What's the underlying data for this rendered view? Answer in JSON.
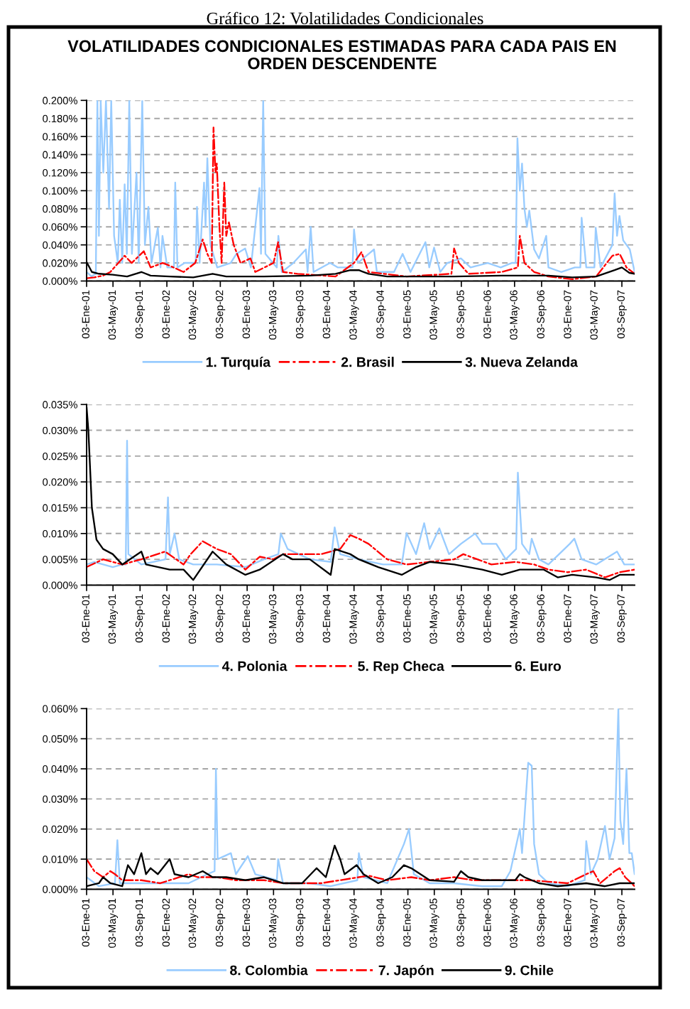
{
  "chart_data": [
    {
      "type": "line",
      "title": "Gráfico 12: Volatilidades Condicionales",
      "subtitle": "VOLATILIDADES CONDICIONALES ESTIMADAS PARA CADA PAIS EN ORDEN DESCENDENTE",
      "xlim": [
        "2001-01-03",
        "2007-10-31"
      ],
      "xticks": [
        {
          "value": "2001-01-03",
          "label": "03-Ene-01"
        },
        {
          "value": "2001-05-03",
          "label": "03-May-01"
        },
        {
          "value": "2001-09-03",
          "label": "03-Sep-01"
        },
        {
          "value": "2002-01-03",
          "label": "03-Ene-02"
        },
        {
          "value": "2002-05-03",
          "label": "03-May-02"
        },
        {
          "value": "2002-09-03",
          "label": "03-Sep-02"
        },
        {
          "value": "2003-01-03",
          "label": "03-Ene-03"
        },
        {
          "value": "2003-05-03",
          "label": "03-May-03"
        },
        {
          "value": "2003-09-03",
          "label": "03-Sep-03"
        },
        {
          "value": "2004-01-03",
          "label": "03-Ene-04"
        },
        {
          "value": "2004-05-03",
          "label": "03-May-04"
        },
        {
          "value": "2004-09-03",
          "label": "03-Sep-04"
        },
        {
          "value": "2005-01-03",
          "label": "03-Ene-05"
        },
        {
          "value": "2005-05-03",
          "label": "03-May-05"
        },
        {
          "value": "2005-09-03",
          "label": "03-Sep-05"
        },
        {
          "value": "2006-01-03",
          "label": "03-Ene-06"
        },
        {
          "value": "2006-05-03",
          "label": "03-May-06"
        },
        {
          "value": "2006-09-03",
          "label": "03-Sep-06"
        },
        {
          "value": "2007-01-03",
          "label": "03-Ene-07"
        },
        {
          "value": "2007-05-03",
          "label": "03-May-07"
        },
        {
          "value": "2007-09-03",
          "label": "03-Sep-07"
        }
      ],
      "ylim": [
        0,
        0.2
      ],
      "yticks": [
        {
          "value": 0,
          "label": "0.000%"
        },
        {
          "value": 0.02,
          "label": "0.020%"
        },
        {
          "value": 0.04,
          "label": "0.040%"
        },
        {
          "value": 0.06,
          "label": "0.060%"
        },
        {
          "value": 0.08,
          "label": "0.080%"
        },
        {
          "value": 0.1,
          "label": "0.100%"
        },
        {
          "value": 0.12,
          "label": "0.120%"
        },
        {
          "value": 0.14,
          "label": "0.140%"
        },
        {
          "value": 0.16,
          "label": "0.160%"
        },
        {
          "value": 0.18,
          "label": "0.180%"
        },
        {
          "value": 0.2,
          "label": "0.200%"
        }
      ],
      "grid": "y",
      "legend": "bottom",
      "series": [
        {
          "name": "1. Turquía",
          "color": "#99ccff",
          "line_style": "solid",
          "x": [
            "2001-01-03",
            "2001-01-25",
            "2001-02-14",
            "2001-02-21",
            "2001-02-28",
            "2001-03-08",
            "2001-03-20",
            "2001-04-01",
            "2001-04-15",
            "2001-04-25",
            "2001-05-08",
            "2001-05-25",
            "2001-06-03",
            "2001-06-14",
            "2001-06-25",
            "2001-07-05",
            "2001-07-16",
            "2001-07-28",
            "2001-08-18",
            "2001-08-28",
            "2001-09-13",
            "2001-09-25",
            "2001-10-11",
            "2001-10-25",
            "2001-11-23",
            "2001-12-05",
            "2001-12-14",
            "2002-01-05",
            "2002-02-04",
            "2002-02-10",
            "2002-02-20",
            "2002-03-25",
            "2002-05-14",
            "2002-05-20",
            "2002-06-01",
            "2002-06-21",
            "2002-06-28",
            "2002-07-06",
            "2002-07-20",
            "2002-08-20",
            "2002-10-20",
            "2002-11-15",
            "2002-12-25",
            "2003-01-20",
            "2003-02-28",
            "2003-03-07",
            "2003-03-17",
            "2003-03-27",
            "2003-05-18",
            "2003-05-25",
            "2003-06-10",
            "2003-08-01",
            "2003-09-27",
            "2003-10-05",
            "2003-10-19",
            "2003-11-01",
            "2004-01-15",
            "2004-02-20",
            "2004-04-26",
            "2004-05-03",
            "2004-05-20",
            "2004-08-02",
            "2004-08-15",
            "2004-11-01",
            "2004-12-10",
            "2005-01-15",
            "2005-03-24",
            "2005-04-10",
            "2005-05-02",
            "2005-05-30",
            "2005-07-01",
            "2005-09-01",
            "2005-10-15",
            "2006-01-01",
            "2006-03-01",
            "2006-04-20",
            "2006-05-08",
            "2006-05-16",
            "2006-05-27",
            "2006-06-06",
            "2006-06-17",
            "2006-06-28",
            "2006-07-09",
            "2006-07-31",
            "2006-08-22",
            "2006-09-24",
            "2006-10-04",
            "2006-12-01",
            "2007-02-01",
            "2007-02-26",
            "2007-03-04",
            "2007-03-25",
            "2007-05-01",
            "2007-05-07",
            "2007-05-29",
            "2007-07-22",
            "2007-08-01",
            "2007-08-12",
            "2007-08-23",
            "2007-09-09",
            "2007-09-24",
            "2007-10-09",
            "2007-10-31"
          ],
          "values": [
            0.01,
            0.005,
            0.008,
            0.2,
            0.05,
            0.2,
            0.12,
            0.2,
            0.08,
            0.2,
            0.05,
            0.02,
            0.09,
            0.02,
            0.107,
            0.03,
            0.2,
            0.03,
            0.12,
            0.02,
            0.2,
            0.04,
            0.082,
            0.02,
            0.059,
            0.015,
            0.05,
            0.015,
            0.015,
            0.109,
            0.015,
            0.02,
            0.02,
            0.082,
            0.02,
            0.109,
            0.06,
            0.136,
            0.04,
            0.015,
            0.02,
            0.03,
            0.036,
            0.015,
            0.103,
            0.03,
            0.2,
            0.03,
            0.015,
            0.05,
            0.01,
            0.02,
            0.035,
            0.01,
            0.06,
            0.01,
            0.02,
            0.015,
            0.015,
            0.057,
            0.02,
            0.035,
            0.01,
            0.01,
            0.03,
            0.01,
            0.043,
            0.015,
            0.037,
            0.01,
            0.02,
            0.025,
            0.015,
            0.02,
            0.015,
            0.02,
            0.02,
            0.158,
            0.1,
            0.13,
            0.08,
            0.06,
            0.078,
            0.035,
            0.025,
            0.05,
            0.015,
            0.01,
            0.015,
            0.015,
            0.07,
            0.015,
            0.015,
            0.059,
            0.015,
            0.04,
            0.097,
            0.05,
            0.072,
            0.045,
            0.04,
            0.035,
            0.01
          ]
        },
        {
          "name": "2. Brasil",
          "color": "#ff0000",
          "line_style": "dashed",
          "x": [
            "2001-01-03",
            "2001-02-07",
            "2001-03-19",
            "2001-04-21",
            "2001-06-25",
            "2001-07-27",
            "2001-09-20",
            "2001-10-21",
            "2001-12-15",
            "2002-01-06",
            "2002-03-20",
            "2002-05-12",
            "2002-06-15",
            "2002-07-06",
            "2002-07-26",
            "2002-08-03",
            "2002-08-12",
            "2002-08-18",
            "2002-08-30",
            "2002-09-09",
            "2002-09-21",
            "2002-09-30",
            "2002-10-12",
            "2002-11-03",
            "2002-12-04",
            "2003-01-18",
            "2003-02-09",
            "2003-05-03",
            "2003-05-24",
            "2003-06-15",
            "2003-08-20",
            "2004-02-09",
            "2004-05-03",
            "2004-06-06",
            "2004-07-08",
            "2004-12-28",
            "2005-07-20",
            "2005-08-01",
            "2005-08-23",
            "2005-10-05",
            "2006-03-06",
            "2006-05-18",
            "2006-05-27",
            "2006-06-17",
            "2006-07-31",
            "2006-10-04",
            "2007-01-20",
            "2007-05-09",
            "2007-07-22",
            "2007-08-24",
            "2007-09-24",
            "2007-10-31"
          ],
          "values": [
            0.003,
            0.004,
            0.006,
            0.01,
            0.028,
            0.02,
            0.033,
            0.015,
            0.02,
            0.018,
            0.01,
            0.02,
            0.046,
            0.03,
            0.02,
            0.17,
            0.12,
            0.13,
            0.06,
            0.02,
            0.109,
            0.05,
            0.065,
            0.04,
            0.02,
            0.025,
            0.01,
            0.02,
            0.043,
            0.01,
            0.008,
            0.005,
            0.02,
            0.032,
            0.01,
            0.005,
            0.008,
            0.036,
            0.02,
            0.008,
            0.01,
            0.015,
            0.05,
            0.02,
            0.01,
            0.005,
            0.002,
            0.005,
            0.028,
            0.03,
            0.015,
            0.008
          ]
        },
        {
          "name": "3. Nueva Zelanda",
          "color": "#000000",
          "line_style": "solid",
          "x": [
            "2001-01-03",
            "2001-01-27",
            "2001-02-28",
            "2001-05-02",
            "2001-07-06",
            "2001-09-09",
            "2001-10-21",
            "2002-01-16",
            "2002-05-03",
            "2002-07-30",
            "2002-09-30",
            "2003-03-21",
            "2003-10-15",
            "2004-02-09",
            "2004-04-16",
            "2004-05-25",
            "2004-07-08",
            "2004-10-01",
            "2005-08-01",
            "2006-03-06",
            "2006-06-17",
            "2006-10-04",
            "2007-01-20",
            "2007-05-09",
            "2007-08-01",
            "2007-09-03",
            "2007-10-07",
            "2007-10-31"
          ],
          "values": [
            0.021,
            0.01,
            0.008,
            0.007,
            0.005,
            0.01,
            0.006,
            0.005,
            0.004,
            0.008,
            0.005,
            0.005,
            0.006,
            0.008,
            0.012,
            0.012,
            0.008,
            0.005,
            0.005,
            0.006,
            0.006,
            0.006,
            0.004,
            0.005,
            0.012,
            0.015,
            0.009,
            0.008
          ]
        }
      ]
    },
    {
      "type": "line",
      "xlim": [
        "2001-01-03",
        "2007-10-31"
      ],
      "xticks": [
        {
          "value": "2001-01-03",
          "label": "03-Ene-01"
        },
        {
          "value": "2001-05-03",
          "label": "03-May-01"
        },
        {
          "value": "2001-09-03",
          "label": "03-Sep-01"
        },
        {
          "value": "2002-01-03",
          "label": "03-Ene-02"
        },
        {
          "value": "2002-05-03",
          "label": "03-May-02"
        },
        {
          "value": "2002-09-03",
          "label": "03-Sep-02"
        },
        {
          "value": "2003-01-03",
          "label": "03-Ene-03"
        },
        {
          "value": "2003-05-03",
          "label": "03-May-03"
        },
        {
          "value": "2003-09-03",
          "label": "03-Sep-03"
        },
        {
          "value": "2004-01-03",
          "label": "03-Ene-04"
        },
        {
          "value": "2004-05-03",
          "label": "03-May-04"
        },
        {
          "value": "2004-09-03",
          "label": "03-Sep-04"
        },
        {
          "value": "2005-01-03",
          "label": "03-Ene-05"
        },
        {
          "value": "2005-05-03",
          "label": "03-May-05"
        },
        {
          "value": "2005-09-03",
          "label": "03-Sep-05"
        },
        {
          "value": "2006-01-03",
          "label": "03-Ene-06"
        },
        {
          "value": "2006-05-03",
          "label": "03-May-06"
        },
        {
          "value": "2006-09-03",
          "label": "03-Sep-06"
        },
        {
          "value": "2007-01-03",
          "label": "03-Ene-07"
        },
        {
          "value": "2007-05-03",
          "label": "03-May-07"
        },
        {
          "value": "2007-09-03",
          "label": "03-Sep-07"
        }
      ],
      "ylim": [
        0,
        0.035
      ],
      "yticks": [
        {
          "value": 0,
          "label": "0.000%"
        },
        {
          "value": 0.005,
          "label": "0.005%"
        },
        {
          "value": 0.01,
          "label": "0.010%"
        },
        {
          "value": 0.015,
          "label": "0.015%"
        },
        {
          "value": 0.02,
          "label": "0.020%"
        },
        {
          "value": 0.025,
          "label": "0.025%"
        },
        {
          "value": 0.03,
          "label": "0.030%"
        },
        {
          "value": 0.035,
          "label": "0.035%"
        }
      ],
      "grid": "y",
      "legend": "bottom",
      "series": [
        {
          "name": "4. Polonia",
          "color": "#99ccff",
          "line_style": "solid",
          "x": [
            "2001-01-03",
            "2001-02-07",
            "2001-05-02",
            "2001-06-14",
            "2001-06-30",
            "2001-07-06",
            "2001-07-12",
            "2001-09-09",
            "2001-12-28",
            "2002-01-08",
            "2002-01-16",
            "2002-02-07",
            "2002-02-28",
            "2002-05-03",
            "2002-08-18",
            "2002-12-26",
            "2003-03-21",
            "2003-05-25",
            "2003-06-05",
            "2003-07-06",
            "2003-10-15",
            "2004-01-18",
            "2004-02-05",
            "2004-03-01",
            "2004-05-25",
            "2004-09-12",
            "2004-12-06",
            "2004-12-28",
            "2005-02-09",
            "2005-03-18",
            "2005-04-12",
            "2005-05-26",
            "2005-07-09",
            "2005-09-01",
            "2005-11-05",
            "2005-12-07",
            "2006-02-09",
            "2006-03-24",
            "2006-05-10",
            "2006-05-18",
            "2006-06-06",
            "2006-07-09",
            "2006-07-20",
            "2006-08-22",
            "2006-10-04",
            "2007-01-09",
            "2007-01-30",
            "2007-03-04",
            "2007-05-09",
            "2007-08-12",
            "2007-09-14",
            "2007-10-31"
          ],
          "values": [
            0.004,
            0.0045,
            0.0035,
            0.004,
            0.004,
            0.028,
            0.006,
            0.004,
            0.005,
            0.017,
            0.006,
            0.01,
            0.005,
            0.004,
            0.004,
            0.0035,
            0.005,
            0.006,
            0.01,
            0.007,
            0.005,
            0.0045,
            0.0112,
            0.006,
            0.005,
            0.004,
            0.004,
            0.0101,
            0.006,
            0.012,
            0.007,
            0.011,
            0.006,
            0.008,
            0.01,
            0.008,
            0.008,
            0.005,
            0.007,
            0.0218,
            0.008,
            0.006,
            0.009,
            0.005,
            0.004,
            0.008,
            0.009,
            0.005,
            0.004,
            0.0065,
            0.004,
            0.004
          ]
        },
        {
          "name": "5. Rep Checa",
          "color": "#ff0000",
          "line_style": "dashed",
          "x": [
            "2001-01-03",
            "2001-03-19",
            "2001-06-14",
            "2001-09-09",
            "2001-12-26",
            "2002-03-20",
            "2002-04-21",
            "2002-06-15",
            "2002-08-18",
            "2002-10-21",
            "2002-12-26",
            "2003-03-01",
            "2003-05-03",
            "2003-06-15",
            "2003-09-10",
            "2003-12-05",
            "2004-03-01",
            "2004-04-16",
            "2004-05-25",
            "2004-07-08",
            "2004-10-01",
            "2004-12-28",
            "2005-04-12",
            "2005-08-01",
            "2005-09-12",
            "2006-01-18",
            "2006-05-06",
            "2006-07-31",
            "2006-10-04",
            "2006-12-30",
            "2007-03-25",
            "2007-06-18",
            "2007-08-24",
            "2007-10-31"
          ],
          "values": [
            0.0035,
            0.005,
            0.004,
            0.005,
            0.0065,
            0.004,
            0.006,
            0.0085,
            0.007,
            0.006,
            0.003,
            0.0055,
            0.005,
            0.006,
            0.006,
            0.006,
            0.007,
            0.0097,
            0.009,
            0.008,
            0.005,
            0.004,
            0.0045,
            0.005,
            0.006,
            0.004,
            0.0045,
            0.004,
            0.003,
            0.0025,
            0.003,
            0.0015,
            0.0025,
            0.003
          ]
        },
        {
          "name": "6. Euro",
          "color": "#000000",
          "line_style": "solid",
          "x": [
            "2001-01-03",
            "2001-01-11",
            "2001-01-27",
            "2001-02-17",
            "2001-03-19",
            "2001-05-02",
            "2001-06-14",
            "2001-09-09",
            "2001-09-30",
            "2002-01-16",
            "2002-03-20",
            "2002-05-03",
            "2002-07-30",
            "2002-09-30",
            "2002-12-26",
            "2003-03-01",
            "2003-06-15",
            "2003-07-28",
            "2003-10-15",
            "2004-01-18",
            "2004-02-05",
            "2004-04-16",
            "2004-05-25",
            "2004-08-21",
            "2004-12-06",
            "2005-02-09",
            "2005-04-12",
            "2005-08-01",
            "2005-12-07",
            "2006-03-06",
            "2006-05-27",
            "2006-09-13",
            "2006-11-15",
            "2007-01-20",
            "2007-05-09",
            "2007-07-09",
            "2007-08-24",
            "2007-10-31"
          ],
          "values": [
            0.0345,
            0.03,
            0.015,
            0.0088,
            0.007,
            0.006,
            0.004,
            0.0065,
            0.004,
            0.003,
            0.003,
            0.001,
            0.0065,
            0.004,
            0.002,
            0.003,
            0.006,
            0.005,
            0.005,
            0.002,
            0.007,
            0.006,
            0.005,
            0.0035,
            0.002,
            0.0035,
            0.0045,
            0.004,
            0.003,
            0.002,
            0.003,
            0.003,
            0.0015,
            0.002,
            0.0015,
            0.001,
            0.002,
            0.002
          ]
        }
      ]
    },
    {
      "type": "line",
      "xlim": [
        "2001-01-03",
        "2007-10-31"
      ],
      "xticks": [
        {
          "value": "2001-01-03",
          "label": "03-Ene-01"
        },
        {
          "value": "2001-05-03",
          "label": "03-May-01"
        },
        {
          "value": "2001-09-03",
          "label": "03-Sep-01"
        },
        {
          "value": "2002-01-03",
          "label": "03-Ene-02"
        },
        {
          "value": "2002-05-03",
          "label": "03-May-02"
        },
        {
          "value": "2002-09-03",
          "label": "03-Sep-02"
        },
        {
          "value": "2003-01-03",
          "label": "03-Ene-03"
        },
        {
          "value": "2003-05-03",
          "label": "03-May-03"
        },
        {
          "value": "2003-09-03",
          "label": "03-Sep-03"
        },
        {
          "value": "2004-01-03",
          "label": "03-Ene-04"
        },
        {
          "value": "2004-05-03",
          "label": "03-May-04"
        },
        {
          "value": "2004-09-03",
          "label": "03-Sep-04"
        },
        {
          "value": "2005-01-03",
          "label": "03-Ene-05"
        },
        {
          "value": "2005-05-03",
          "label": "03-May-05"
        },
        {
          "value": "2005-09-03",
          "label": "03-Sep-05"
        },
        {
          "value": "2006-01-03",
          "label": "03-Ene-06"
        },
        {
          "value": "2006-05-03",
          "label": "03-May-06"
        },
        {
          "value": "2006-09-03",
          "label": "03-Sep-06"
        },
        {
          "value": "2007-01-03",
          "label": "03-Ene-07"
        },
        {
          "value": "2007-05-03",
          "label": "03-May-07"
        },
        {
          "value": "2007-09-03",
          "label": "03-Sep-07"
        }
      ],
      "ylim": [
        0,
        0.06
      ],
      "yticks": [
        {
          "value": 0,
          "label": "0.000%"
        },
        {
          "value": 0.01,
          "label": "0.010%"
        },
        {
          "value": 0.02,
          "label": "0.020%"
        },
        {
          "value": 0.03,
          "label": "0.030%"
        },
        {
          "value": 0.04,
          "label": "0.040%"
        },
        {
          "value": 0.05,
          "label": "0.050%"
        },
        {
          "value": 0.06,
          "label": "0.060%"
        }
      ],
      "grid": "y",
      "legend": "bottom",
      "series": [
        {
          "name": "8. Colombia",
          "color": "#99ccff",
          "line_style": "solid",
          "x": [
            "2001-01-03",
            "2001-02-28",
            "2001-05-12",
            "2001-05-23",
            "2001-06-03",
            "2001-09-30",
            "2002-01-16",
            "2002-04-12",
            "2002-07-06",
            "2002-08-08",
            "2002-08-14",
            "2002-08-22",
            "2002-10-21",
            "2002-11-13",
            "2003-01-06",
            "2003-02-09",
            "2003-05-18",
            "2003-05-24",
            "2003-06-15",
            "2003-10-15",
            "2004-01-18",
            "2004-05-18",
            "2004-05-25",
            "2004-06-15",
            "2004-10-01",
            "2004-12-16",
            "2005-01-08",
            "2005-01-30",
            "2005-04-12",
            "2005-08-01",
            "2005-12-07",
            "2006-03-06",
            "2006-04-14",
            "2006-05-27",
            "2006-06-06",
            "2006-07-04",
            "2006-07-20",
            "2006-07-31",
            "2006-08-22",
            "2006-10-04",
            "2006-12-30",
            "2007-03-18",
            "2007-03-25",
            "2007-04-15",
            "2007-05-16",
            "2007-06-18",
            "2007-07-09",
            "2007-08-01",
            "2007-08-18",
            "2007-08-27",
            "2007-09-09",
            "2007-09-24",
            "2007-10-07",
            "2007-10-18",
            "2007-10-31"
          ],
          "values": [
            0.004,
            0.001,
            0.002,
            0.0163,
            0.002,
            0.002,
            0.002,
            0.002,
            0.005,
            0.006,
            0.04,
            0.01,
            0.012,
            0.005,
            0.011,
            0.005,
            0.003,
            0.01,
            0.002,
            0.002,
            0.001,
            0.003,
            0.012,
            0.004,
            0.002,
            0.015,
            0.02,
            0.005,
            0.002,
            0.002,
            0.001,
            0.001,
            0.006,
            0.02,
            0.012,
            0.042,
            0.041,
            0.015,
            0.005,
            0.002,
            0.001,
            0.003,
            0.016,
            0.005,
            0.01,
            0.021,
            0.01,
            0.017,
            0.06,
            0.023,
            0.015,
            0.04,
            0.012,
            0.012,
            0.005
          ]
        },
        {
          "name": "7. Japón",
          "color": "#ff0000",
          "line_style": "dashed",
          "x": [
            "2001-01-03",
            "2001-02-07",
            "2001-03-19",
            "2001-04-21",
            "2001-05-12",
            "2001-06-14",
            "2001-09-09",
            "2001-12-04",
            "2002-01-16",
            "2002-04-12",
            "2002-05-24",
            "2002-08-18",
            "2002-11-13",
            "2003-03-21",
            "2003-06-15",
            "2003-09-10",
            "2003-12-05",
            "2004-03-01",
            "2004-05-25",
            "2004-07-08",
            "2004-10-01",
            "2005-01-18",
            "2005-04-12",
            "2005-08-01",
            "2005-10-25",
            "2006-03-06",
            "2006-07-09",
            "2006-10-04",
            "2006-12-30",
            "2007-03-25",
            "2007-04-26",
            "2007-05-27",
            "2007-08-01",
            "2007-08-24",
            "2007-09-18",
            "2007-10-31"
          ],
          "values": [
            0.01,
            0.006,
            0.004,
            0.006,
            0.005,
            0.003,
            0.003,
            0.002,
            0.003,
            0.005,
            0.004,
            0.004,
            0.003,
            0.003,
            0.002,
            0.002,
            0.002,
            0.003,
            0.004,
            0.0045,
            0.003,
            0.004,
            0.003,
            0.004,
            0.003,
            0.003,
            0.003,
            0.0025,
            0.002,
            0.005,
            0.006,
            0.002,
            0.006,
            0.007,
            0.004,
            0.001
          ]
        },
        {
          "name": "9. Chile",
          "color": "#000000",
          "line_style": "solid",
          "x": [
            "2001-01-03",
            "2001-02-28",
            "2001-03-19",
            "2001-04-21",
            "2001-06-14",
            "2001-07-10",
            "2001-08-07",
            "2001-09-09",
            "2001-09-30",
            "2001-10-21",
            "2001-11-23",
            "2002-01-16",
            "2002-02-07",
            "2002-04-12",
            "2002-06-15",
            "2002-07-30",
            "2002-09-30",
            "2002-12-26",
            "2003-03-21",
            "2003-06-15",
            "2003-09-10",
            "2003-11-15",
            "2003-12-27",
            "2004-02-05",
            "2004-03-01",
            "2004-03-21",
            "2004-05-15",
            "2004-06-15",
            "2004-08-21",
            "2004-10-24",
            "2004-12-16",
            "2005-01-18",
            "2005-03-01",
            "2005-04-12",
            "2005-08-01",
            "2005-09-01",
            "2005-10-05",
            "2005-12-07",
            "2006-03-06",
            "2006-05-06",
            "2006-05-27",
            "2006-06-17",
            "2006-08-22",
            "2006-11-15",
            "2007-03-25",
            "2007-06-18",
            "2007-08-24",
            "2007-10-31"
          ],
          "values": [
            0.001,
            0.002,
            0.004,
            0.002,
            0.001,
            0.008,
            0.005,
            0.012,
            0.005,
            0.007,
            0.005,
            0.01,
            0.005,
            0.004,
            0.006,
            0.004,
            0.004,
            0.003,
            0.004,
            0.002,
            0.002,
            0.007,
            0.004,
            0.0145,
            0.01,
            0.005,
            0.008,
            0.005,
            0.002,
            0.004,
            0.008,
            0.007,
            0.005,
            0.003,
            0.0025,
            0.006,
            0.004,
            0.003,
            0.003,
            0.003,
            0.005,
            0.004,
            0.002,
            0.001,
            0.002,
            0.001,
            0.002,
            0.002
          ]
        }
      ]
    }
  ]
}
